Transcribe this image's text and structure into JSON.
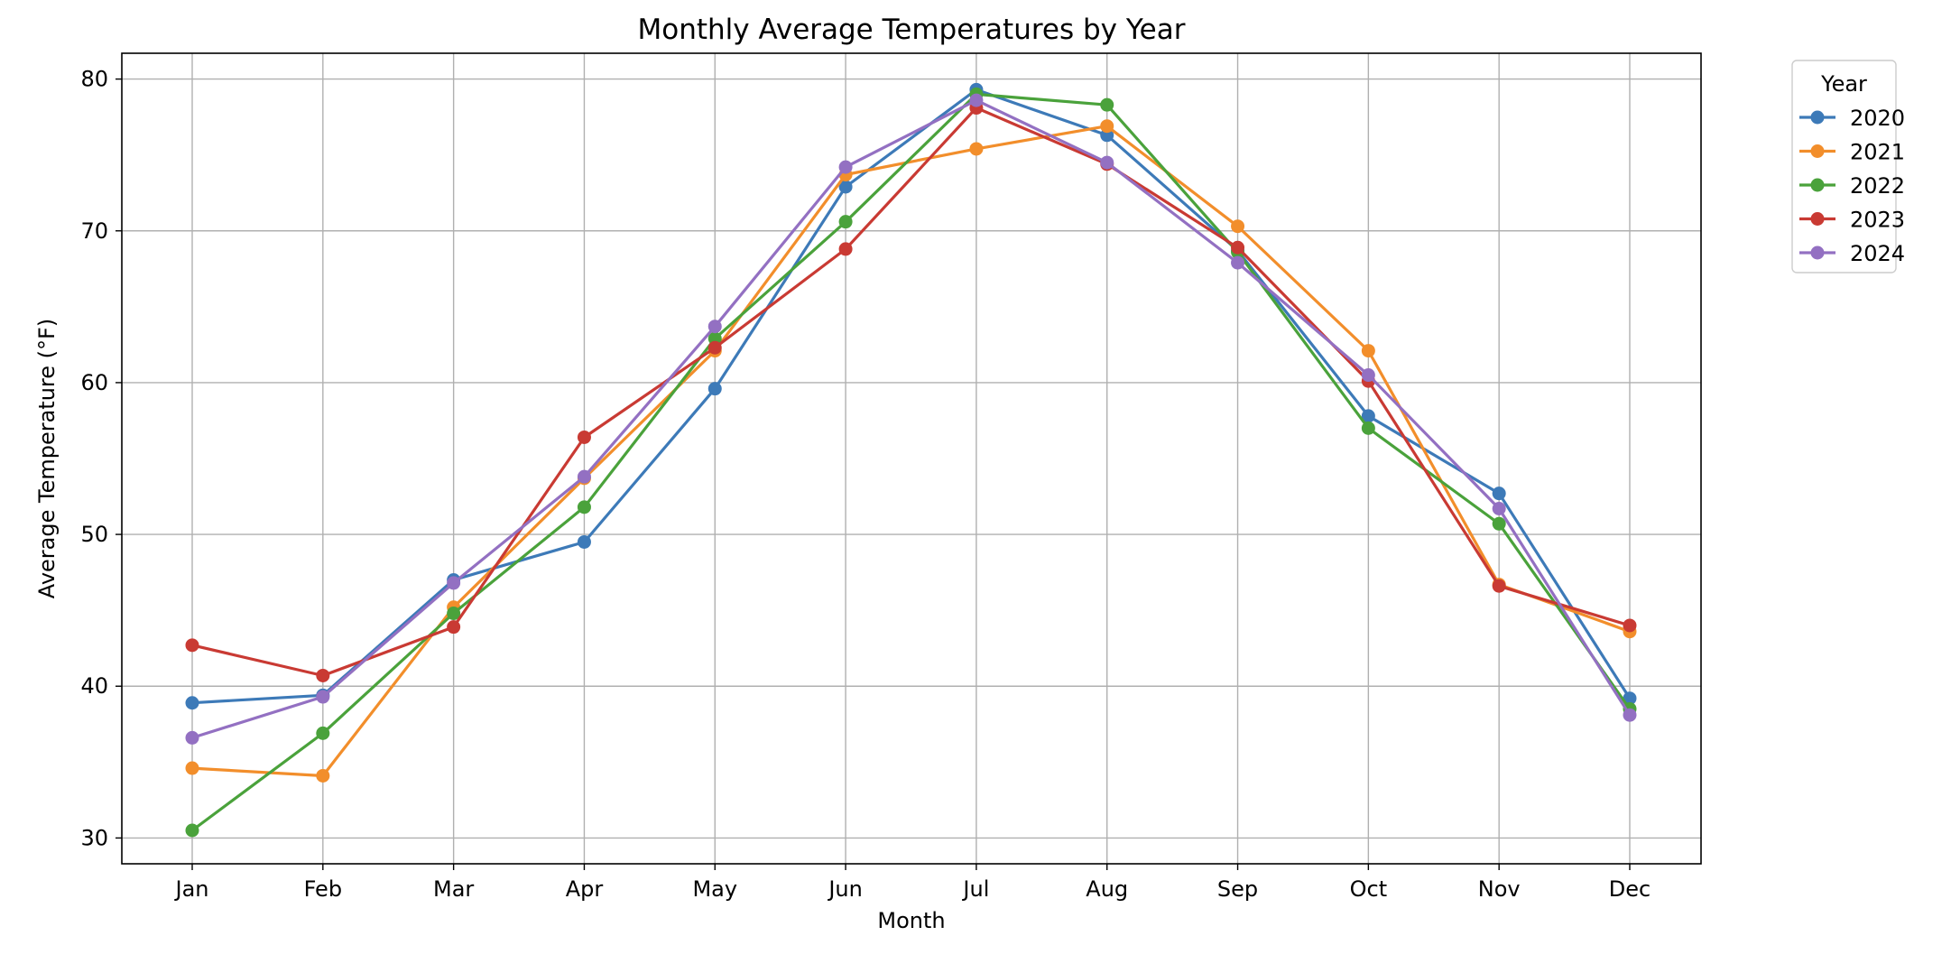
{
  "chart_data": {
    "type": "line",
    "title": "Monthly Average Temperatures by Year",
    "xlabel": "Month",
    "ylabel": "Average Temperature (°F)",
    "categories": [
      "Jan",
      "Feb",
      "Mar",
      "Apr",
      "May",
      "Jun",
      "Jul",
      "Aug",
      "Sep",
      "Oct",
      "Nov",
      "Dec"
    ],
    "ylim": [
      28.3,
      81.7
    ],
    "yticks": [
      30,
      40,
      50,
      60,
      70,
      80
    ],
    "grid": true,
    "legend": {
      "title": "Year",
      "placement": "outside-upper-right"
    },
    "series": [
      {
        "name": "2020",
        "color": "#3d7ab8",
        "values": [
          38.9,
          39.4,
          47.0,
          49.5,
          59.6,
          72.9,
          79.3,
          76.3,
          68.7,
          57.8,
          52.7,
          39.2
        ]
      },
      {
        "name": "2021",
        "color": "#f28e2b",
        "values": [
          34.6,
          34.1,
          45.2,
          53.7,
          62.1,
          73.7,
          75.4,
          76.9,
          70.3,
          62.1,
          46.7,
          43.6
        ]
      },
      {
        "name": "2022",
        "color": "#4aa23b",
        "values": [
          30.5,
          36.9,
          44.8,
          51.8,
          62.9,
          70.6,
          79.0,
          78.3,
          68.6,
          57.0,
          50.7,
          38.5
        ]
      },
      {
        "name": "2023",
        "color": "#c93a33",
        "values": [
          42.7,
          40.7,
          43.9,
          56.4,
          62.3,
          68.8,
          78.1,
          74.4,
          68.9,
          60.1,
          46.6,
          44.0
        ]
      },
      {
        "name": "2024",
        "color": "#9370c2",
        "values": [
          36.6,
          39.3,
          46.8,
          53.8,
          63.7,
          74.2,
          78.6,
          74.5,
          67.9,
          60.5,
          51.7,
          38.1
        ]
      }
    ]
  }
}
